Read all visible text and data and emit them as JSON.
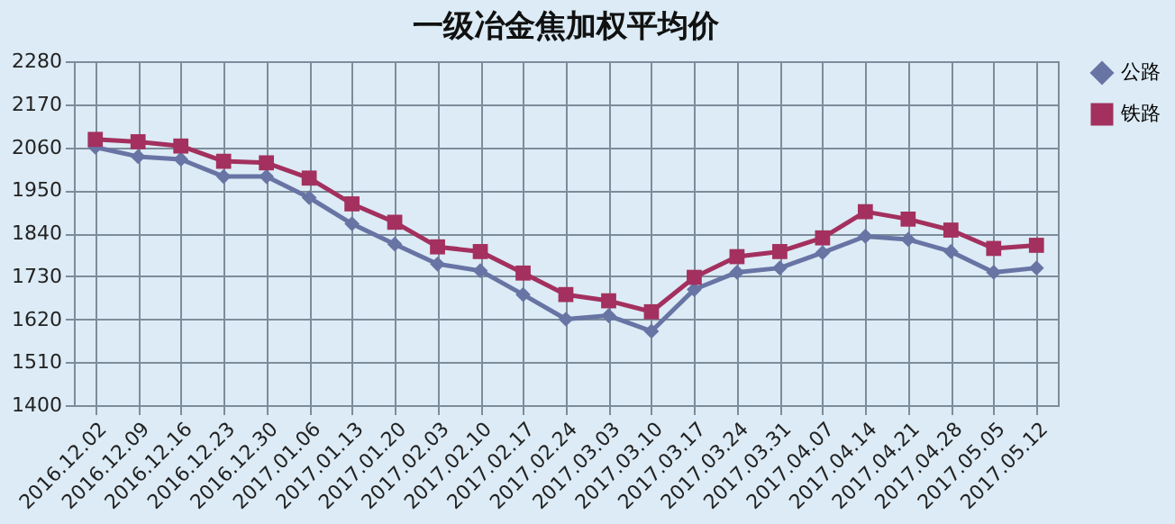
{
  "chart_data": {
    "type": "line",
    "title": "一级冶金焦加权平均价",
    "categories": [
      "2016.12.02",
      "2016.12.09",
      "2016.12.16",
      "2016.12.23",
      "2016.12.30",
      "2017.01.06",
      "2017.01.13",
      "2017.01.20",
      "2017.02.03",
      "2017.02.10",
      "2017.02.17",
      "2017.02.24",
      "2017.03.03",
      "2017.03.10",
      "2017.03.17",
      "2017.03.24",
      "2017.03.31",
      "2017.04.07",
      "2017.04.14",
      "2017.04.21",
      "2017.04.28",
      "2017.05.05",
      "2017.05.12"
    ],
    "series": [
      {
        "name": "公路",
        "color": "#6874a4",
        "marker": "diamond",
        "values": [
          2060,
          2036,
          2029,
          1985,
          1985,
          1931,
          1864,
          1812,
          1761,
          1744,
          1683,
          1620,
          1629,
          1589,
          1696,
          1740,
          1751,
          1790,
          1832,
          1824,
          1793,
          1740,
          1751
        ]
      },
      {
        "name": "铁路",
        "color": "#a3305e",
        "marker": "square",
        "values": [
          2080,
          2074,
          2063,
          2024,
          2020,
          1981,
          1915,
          1868,
          1805,
          1793,
          1738,
          1683,
          1667,
          1639,
          1727,
          1780,
          1793,
          1828,
          1895,
          1876,
          1848,
          1801,
          1809
        ]
      }
    ],
    "ylim": [
      1400,
      2280
    ],
    "yticks": [
      1400,
      1510,
      1620,
      1730,
      1840,
      1950,
      2060,
      2170,
      2280
    ],
    "grid": true,
    "legend": "right",
    "line_style": "solid"
  }
}
